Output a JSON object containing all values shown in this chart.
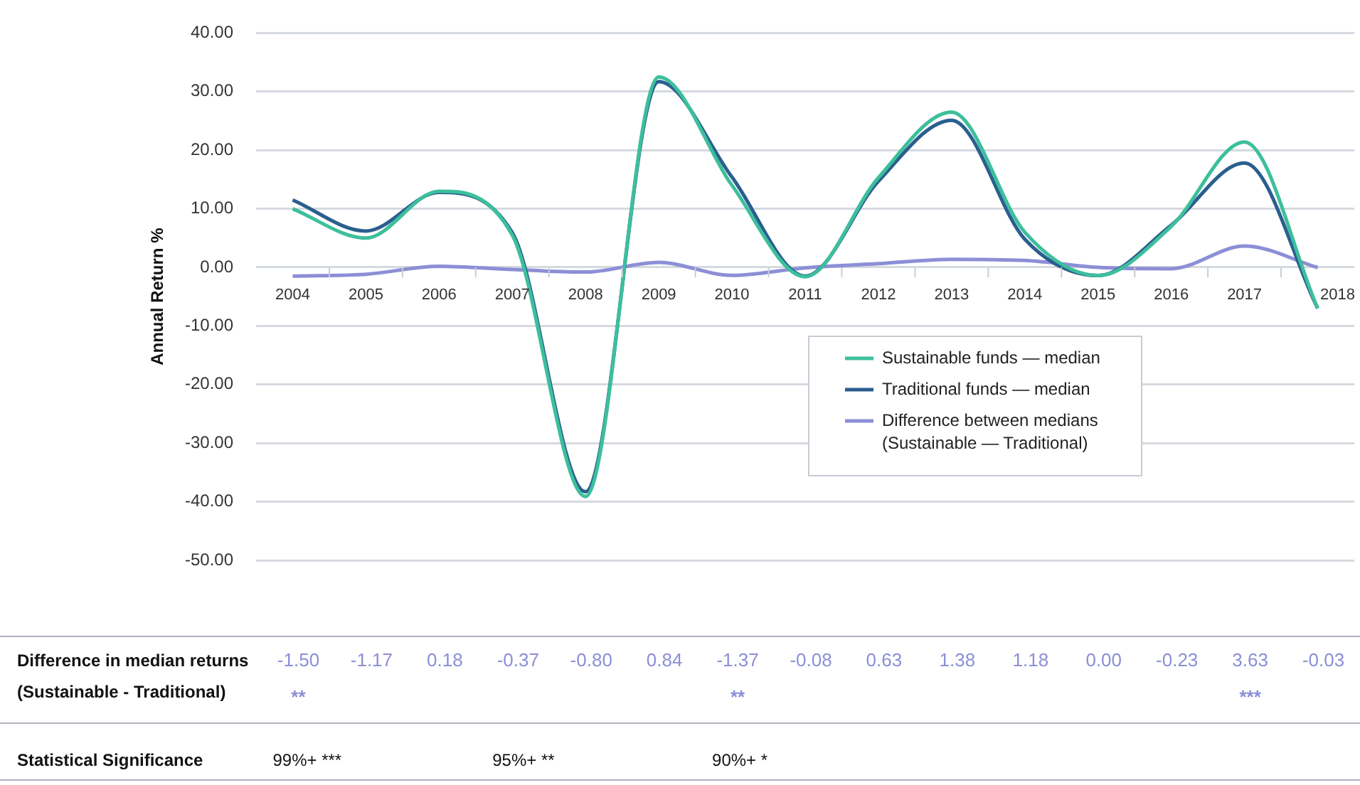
{
  "chart_data": {
    "type": "line",
    "ylabel": "Annual Return %",
    "categories": [
      "2004",
      "2005",
      "2006",
      "2007",
      "2008",
      "2009",
      "2010",
      "2011",
      "2012",
      "2013",
      "2014",
      "2015",
      "2016",
      "2017",
      "2018"
    ],
    "series": [
      {
        "name": "Sustainable funds — median",
        "color": "#3dbf9c",
        "values": [
          10.0,
          5.0,
          13.0,
          5.5,
          -39.1,
          32.5,
          14.0,
          -1.6,
          15.3,
          26.5,
          6.0,
          -1.4,
          7.0,
          21.4,
          -7.0
        ]
      },
      {
        "name": "Traditional funds — median",
        "color": "#2a5f8f",
        "values": [
          11.5,
          6.2,
          12.8,
          5.9,
          -38.3,
          31.7,
          15.4,
          -1.5,
          14.7,
          25.1,
          4.8,
          -1.4,
          7.2,
          17.8,
          -7.0
        ]
      },
      {
        "name": "Difference between medians (Sustainable — Traditional)",
        "color": "#8c8fd6",
        "values": [
          -1.5,
          -1.17,
          0.18,
          -0.37,
          -0.8,
          0.84,
          -1.37,
          -0.08,
          0.63,
          1.38,
          1.18,
          0,
          -0.23,
          3.63,
          -0.03
        ],
        "value_labels": [
          "-1.50",
          "-1.17",
          "0.18",
          "-0.37",
          "-0.80",
          "0.84",
          "-1.37",
          "-0.08",
          "0.63",
          "1.38",
          "1.18",
          "0.00",
          "-0.23",
          "3.63",
          "-0.03"
        ]
      }
    ],
    "ylim": [
      -50,
      40
    ],
    "yticks": [
      {
        "value": -50,
        "label": "-50.00"
      },
      {
        "value": -40,
        "label": "-40.00"
      },
      {
        "value": -30,
        "label": "-30.00"
      },
      {
        "value": -20,
        "label": "-20.00"
      },
      {
        "value": -10,
        "label": "-10.00"
      },
      {
        "value": 0,
        "label": "0.00"
      },
      {
        "value": 10,
        "label": "10.00"
      },
      {
        "value": 20,
        "label": "20.00"
      },
      {
        "value": 30,
        "label": "30.00"
      },
      {
        "value": 40,
        "label": "40.00"
      }
    ],
    "grid": "y",
    "legend": "bottom right",
    "marker": "none",
    "line_style": "solid",
    "annotations": [
      "Difference in median returns (Sustainable - Traditional)",
      "Statistical Significance",
      "99%+ ***",
      "95%+ **",
      "90%+ *",
      "**",
      "**",
      "***"
    ]
  }
}
